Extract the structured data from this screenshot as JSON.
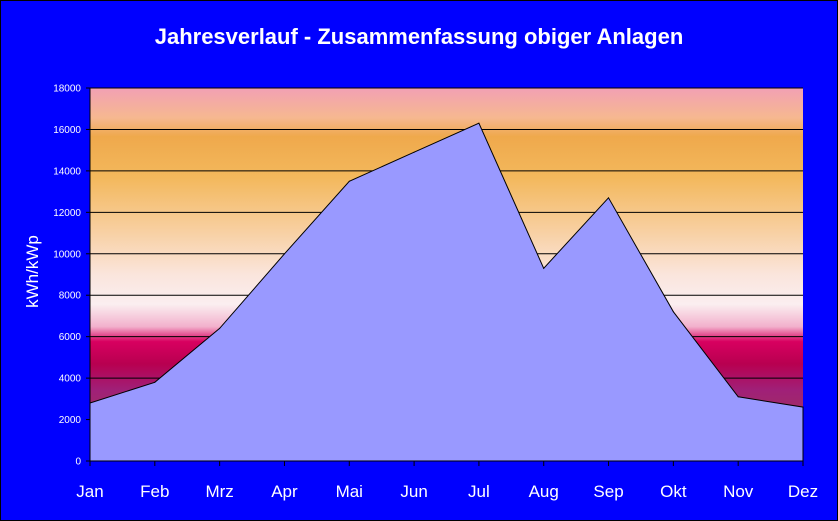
{
  "chart_data": {
    "type": "area",
    "title": "Jahresverlauf - Zusammenfassung obiger Anlagen",
    "xlabel": "",
    "ylabel": "kWh/kWp",
    "categories": [
      "Jan",
      "Feb",
      "Mrz",
      "Apr",
      "Mai",
      "Jun",
      "Jul",
      "Aug",
      "Sep",
      "Okt",
      "Nov",
      "Dez"
    ],
    "series": [
      {
        "values": [
          2800,
          3800,
          6400,
          10000,
          13500,
          14900,
          16300,
          9300,
          12700,
          7200,
          3100,
          2600
        ]
      }
    ],
    "ylim": [
      0,
      18000
    ],
    "yticks": [
      0,
      2000,
      4000,
      6000,
      8000,
      10000,
      12000,
      14000,
      16000,
      18000
    ],
    "grid": true,
    "legend": "none",
    "colors": {
      "frame_background": "#0000ff",
      "area_fill": "#9999ff",
      "text": "#ffffff",
      "gridline": "#000000"
    }
  }
}
